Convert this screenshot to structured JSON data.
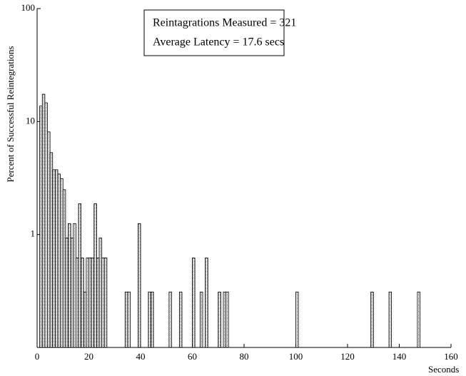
{
  "chart_data": {
    "type": "bar",
    "box_lines": [
      "Reintagrations Measured = 321",
      "Average Latency = 17.6 secs"
    ],
    "x_label": "Seconds",
    "y_label": "Percent of Successful Reintegrations",
    "x": [
      1,
      2,
      3,
      4,
      5,
      6,
      7,
      8,
      9,
      10,
      11,
      12,
      13,
      14,
      15,
      16,
      17,
      18,
      19,
      20,
      21,
      22,
      23,
      24,
      25,
      26,
      34,
      35,
      39,
      43,
      44,
      51,
      55,
      60,
      63,
      65,
      70,
      72,
      73,
      100,
      129,
      136,
      147
    ],
    "values": [
      13.71,
      17.45,
      14.64,
      8.1,
      5.3,
      3.74,
      3.74,
      3.43,
      3.12,
      2.49,
      0.93,
      1.25,
      0.93,
      1.25,
      0.62,
      1.87,
      0.62,
      0.31,
      0.62,
      0.62,
      0.62,
      1.87,
      0.62,
      0.93,
      0.62,
      0.62,
      0.31,
      0.31,
      1.25,
      0.31,
      0.31,
      0.31,
      0.31,
      0.62,
      0.31,
      0.62,
      0.31,
      0.31,
      0.31,
      0.31,
      0.31,
      0.31,
      0.31
    ],
    "color": "#bbbbbb",
    "xlim": [
      0,
      160
    ],
    "xticks": [
      0,
      20,
      40,
      60,
      80,
      100,
      120,
      140,
      160
    ],
    "ylim": [
      0.1,
      100
    ],
    "yticks": [
      1,
      10,
      100
    ],
    "log_y": true
  }
}
